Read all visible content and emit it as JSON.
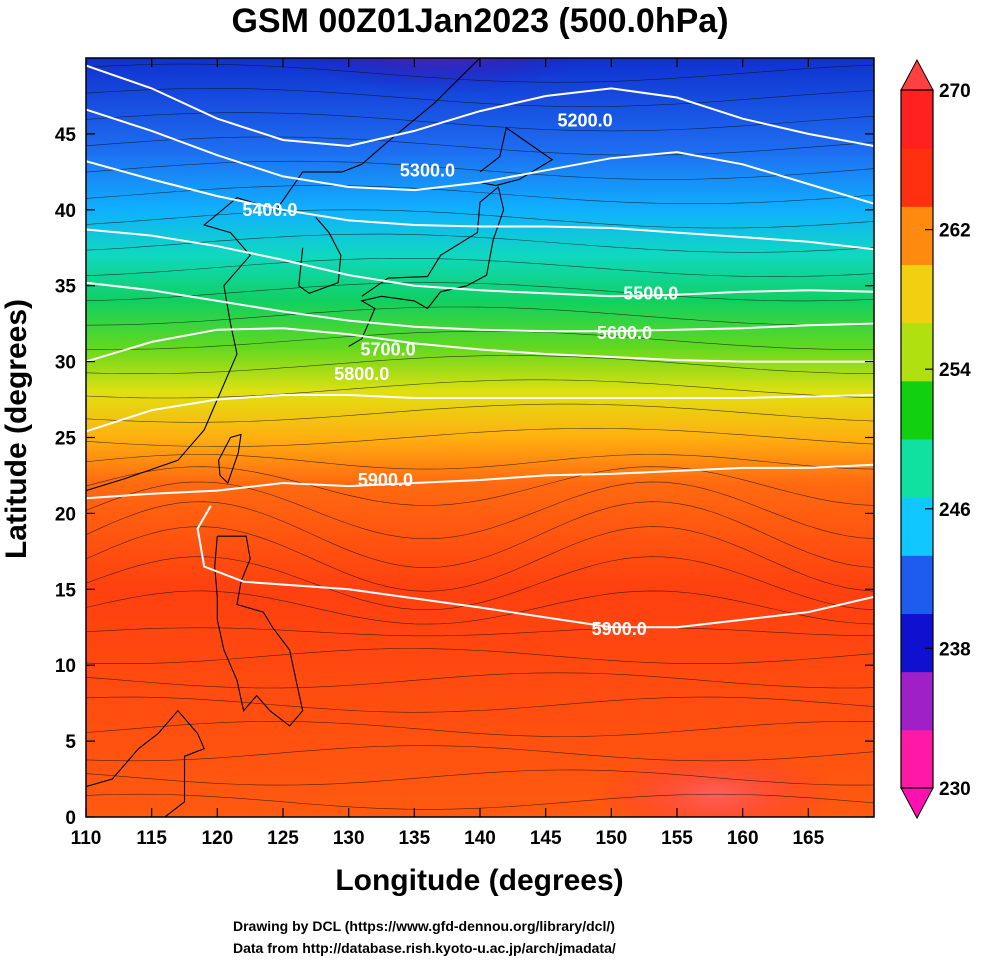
{
  "title": "GSM 00Z01Jan2023 (500.0hPa)",
  "axes": {
    "xlabel": "Longitude (degrees)",
    "ylabel": "Latitude  (degrees)",
    "xticks": [
      "110",
      "115",
      "120",
      "125",
      "130",
      "135",
      "140",
      "145",
      "150",
      "155",
      "160",
      "165"
    ],
    "yticks": [
      "0",
      "5",
      "10",
      "15",
      "20",
      "25",
      "30",
      "35",
      "40",
      "45"
    ],
    "xlim": [
      110,
      170
    ],
    "ylim": [
      0,
      50
    ]
  },
  "colorbar": {
    "ticks": [
      "270",
      "262",
      "254",
      "246",
      "238",
      "230"
    ],
    "min": 230,
    "max": 270,
    "colors": [
      "#ff1aa6",
      "#a020c8",
      "#1010d0",
      "#1e5cf0",
      "#10c8ff",
      "#10e0a0",
      "#10d010",
      "#b0e010",
      "#f0d010",
      "#ff8a10",
      "#ff3010",
      "#ff2020"
    ]
  },
  "contours": [
    {
      "label": "5200.0",
      "lat": [
        49.5,
        48.0,
        46.0,
        44.6,
        44.2,
        45.2,
        46.5,
        47.5,
        48.0,
        47.4,
        46.0,
        45.0,
        44.2
      ]
    },
    {
      "label": "5300.0",
      "lat": [
        46.6,
        45.2,
        43.6,
        42.2,
        41.5,
        41.3,
        41.8,
        42.6,
        43.4,
        43.8,
        43.0,
        41.7,
        40.4
      ]
    },
    {
      "label": "5400.0",
      "lat": [
        43.2,
        42.0,
        40.9,
        40.0,
        39.3,
        39.0,
        38.9,
        38.9,
        38.8,
        38.5,
        38.2,
        37.9,
        37.4
      ]
    },
    {
      "label": "5500.0",
      "lat": [
        38.7,
        38.3,
        37.6,
        36.7,
        35.7,
        35.0,
        34.7,
        34.5,
        34.3,
        34.4,
        34.6,
        34.7,
        34.6
      ]
    },
    {
      "label": "5600.0",
      "lat": [
        35.2,
        34.7,
        34.0,
        33.3,
        32.7,
        32.3,
        32.1,
        32.0,
        32.0,
        32.1,
        32.2,
        32.4,
        32.5
      ]
    },
    {
      "label": "5700.0",
      "lat": [
        30.0,
        31.3,
        32.1,
        32.2,
        31.8,
        31.2,
        30.8,
        30.5,
        30.3,
        30.1,
        30.0,
        30.0,
        30.0
      ]
    },
    {
      "label": "5800.0",
      "lat": [
        25.4,
        26.8,
        27.5,
        27.8,
        27.8,
        27.6,
        27.6,
        27.6,
        27.6,
        27.6,
        27.6,
        27.7,
        27.8
      ]
    }
  ],
  "ridge_contour": {
    "label": "5900.0",
    "label2": "5900.0"
  },
  "annotations": {
    "credit1": "Drawing by DCL (https://www.gfd-dennou.org/library/dcl/)",
    "credit2": "Data from http://database.rish.kyoto-u.ac.jp/arch/jmadata/"
  }
}
